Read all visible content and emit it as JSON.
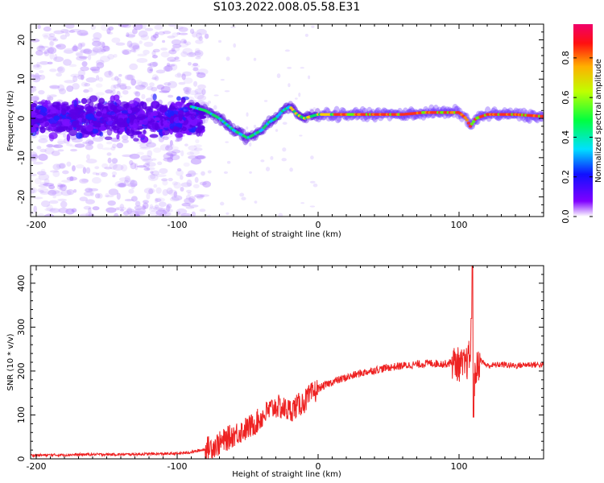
{
  "title": "S103.2022.008.05.58.E31",
  "chart_data": [
    {
      "type": "heatmap",
      "xlabel": "Height of straight line (km)",
      "ylabel": "Frequency (Hz)",
      "xlim": [
        -204,
        160
      ],
      "ylim": [
        -25,
        24
      ],
      "x_ticks": [
        "-200",
        "-100",
        "0",
        "100"
      ],
      "y_ticks": [
        "20",
        "10",
        "0",
        "-10",
        "-20"
      ],
      "colorbar": {
        "label": "Normalized spectral amplitude",
        "ticks": [
          "0.0",
          "0.2",
          "0.4",
          "0.6",
          "0.8"
        ],
        "range": [
          0,
          0.97
        ]
      },
      "ridge": {
        "x": [
          -90,
          -80,
          -70,
          -60,
          -55,
          -50,
          -45,
          -40,
          -35,
          -30,
          -25,
          -20,
          -15,
          -10,
          -5,
          0,
          20,
          40,
          60,
          75,
          85,
          100,
          105,
          108,
          112,
          120,
          140,
          160
        ],
        "y": [
          3,
          2,
          0,
          -3,
          -4,
          -5,
          -4,
          -3,
          -1,
          0,
          2,
          3,
          1,
          0,
          0.5,
          1,
          1,
          1,
          1,
          1.5,
          1.5,
          1.5,
          0,
          -2,
          0,
          1,
          1,
          0.5
        ]
      },
      "grid": false
    },
    {
      "type": "line",
      "xlabel": "Height of straight line (km)",
      "ylabel": "SNR (10 * v/v)",
      "xlim": [
        -204,
        160
      ],
      "ylim": [
        0,
        440
      ],
      "x_ticks": [
        "-200",
        "-100",
        "0",
        "100"
      ],
      "y_ticks": [
        "0",
        "100",
        "200",
        "300",
        "400"
      ],
      "series": [
        {
          "color": "#ee2222",
          "x": [
            -204,
            -180,
            -160,
            -140,
            -120,
            -100,
            -90,
            -80,
            -70,
            -60,
            -50,
            -45,
            -40,
            -35,
            -30,
            -25,
            -20,
            -15,
            -10,
            -5,
            0,
            10,
            20,
            30,
            40,
            50,
            60,
            70,
            80,
            90,
            95,
            100,
            103,
            106,
            108,
            110,
            112,
            115,
            120,
            130,
            140,
            150,
            160
          ],
          "y": [
            8,
            9,
            10,
            10,
            11,
            12,
            15,
            22,
            35,
            55,
            70,
            80,
            95,
            110,
            120,
            115,
            110,
            120,
            130,
            145,
            160,
            175,
            185,
            195,
            202,
            208,
            212,
            215,
            218,
            216,
            220,
            215,
            210,
            220,
            240,
            150,
            200,
            225,
            212,
            215,
            212,
            215,
            214
          ]
        }
      ],
      "grid": false
    }
  ]
}
